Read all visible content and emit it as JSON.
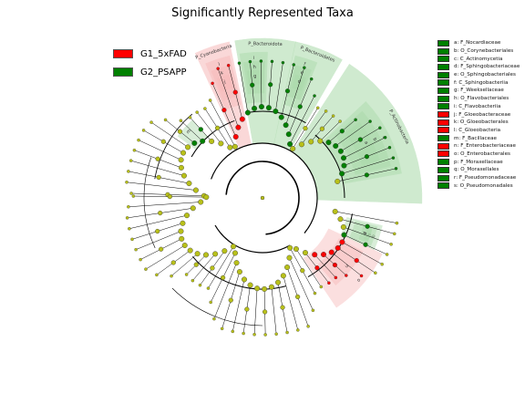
{
  "title": "Significantly Represented Taxa",
  "colors": {
    "g1": "#ff0000",
    "g2": "#008000",
    "g1_shade": "#f7b9b9",
    "g2_shade": "#a9d9a9",
    "node_neutral": "#b8c01a",
    "branch": "#000000"
  },
  "groups": [
    {
      "label": "G1_5xFAD",
      "color": "#ff0000"
    },
    {
      "label": "G2_PSAPP",
      "color": "#008000"
    }
  ],
  "taxa_legend": [
    {
      "text": "a: F_Nocardiaceae",
      "group": "g2"
    },
    {
      "text": "b: O_Corynebacteriales",
      "group": "g2"
    },
    {
      "text": "c: C_Actinomycetia",
      "group": "g2"
    },
    {
      "text": "d: F_Sphingobacteriaceae",
      "group": "g2"
    },
    {
      "text": "e: O_Sphingobacteriales",
      "group": "g2"
    },
    {
      "text": "f: C_Sphingobacteriia",
      "group": "g2"
    },
    {
      "text": "g: F_Weeksellaceae",
      "group": "g2"
    },
    {
      "text": "h: O_Flavobacteriales",
      "group": "g2"
    },
    {
      "text": "i: C_Flavobacteriia",
      "group": "g2"
    },
    {
      "text": "j: F_Gloeobacteraceae",
      "group": "g1"
    },
    {
      "text": "k: O_Gloeobacterales",
      "group": "g1"
    },
    {
      "text": "l: C_Gloeobacteria",
      "group": "g1"
    },
    {
      "text": "m: F_Bacillaceae",
      "group": "g2"
    },
    {
      "text": "n: F_Enterobacteriaceae",
      "group": "g1"
    },
    {
      "text": "o: O_Enterobacterales",
      "group": "g1"
    },
    {
      "text": "p: F_Moraxellaceae",
      "group": "g2"
    },
    {
      "text": "q: O_Moraxellales",
      "group": "g2"
    },
    {
      "text": "r: F_Pseudomonadaceae",
      "group": "g2"
    },
    {
      "text": "s: O_Pseudomonadales",
      "group": "g2"
    }
  ],
  "clades": [
    {
      "label": "P_Bacteroidota",
      "group": "g2",
      "from": -100,
      "to": -78
    },
    {
      "label": "P_Bacteroidetes",
      "group": "g2",
      "from": -78,
      "to": -60
    },
    {
      "label": "P_Actinobacteria",
      "group": "g2",
      "from": -57,
      "to": 2
    },
    {
      "label": "P_Cyanobacteria",
      "group": "g1",
      "from": -115,
      "to": -102
    },
    {
      "label": "m",
      "group": "g2",
      "from": -144,
      "to": -132
    },
    {
      "label": "o",
      "group": "g1",
      "from": 25,
      "to": 56
    },
    {
      "label": "q",
      "group": "g2",
      "from": 13,
      "to": 25
    },
    {
      "label": "c",
      "group": "g2",
      "from": -43,
      "to": -10
    },
    {
      "label": "b",
      "group": "g2",
      "from": -41,
      "to": -14
    },
    {
      "label": "a",
      "group": "g2",
      "from": -38,
      "to": -18
    },
    {
      "label": "f",
      "group": "g2",
      "from": -77,
      "to": -68
    },
    {
      "label": "e",
      "group": "g2",
      "from": -76,
      "to": -69
    },
    {
      "label": "d",
      "group": "g2",
      "from": -75,
      "to": -70
    },
    {
      "label": "i",
      "group": "g2",
      "from": -99,
      "to": -88
    },
    {
      "label": "h",
      "group": "g2",
      "from": -98,
      "to": -89
    },
    {
      "label": "g",
      "group": "g2",
      "from": -97,
      "to": -90
    },
    {
      "label": "l",
      "group": "g1",
      "from": -113,
      "to": -103
    },
    {
      "label": "k",
      "group": "g1",
      "from": -112,
      "to": -104
    },
    {
      "label": "j",
      "group": "g1",
      "from": -111,
      "to": -105
    },
    {
      "label": "n",
      "group": "g1",
      "from": 28,
      "to": 50
    },
    {
      "label": "s",
      "group": "g2",
      "from": 14,
      "to": 24
    },
    {
      "label": "r",
      "group": "g2",
      "from": 15,
      "to": 23
    },
    {
      "label": "p",
      "group": "g2",
      "from": 16,
      "to": 22
    }
  ]
}
